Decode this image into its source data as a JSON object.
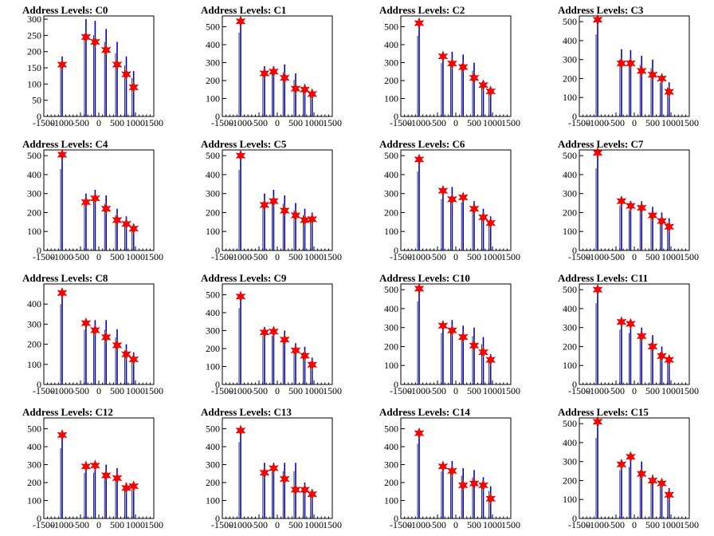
{
  "colors": {
    "spike": "#0000cc",
    "spike_dark": "#000000",
    "marker": "#ff0000",
    "marker_edge": "#cc0000",
    "axis": "#000000"
  },
  "x_ticks": [
    "-1500",
    "-1000",
    "-500",
    "0",
    "500",
    "1000",
    "1500"
  ],
  "chart_data": [
    {
      "type": "bar",
      "title": "Address Levels: C0",
      "xlim": [
        -1500,
        1500
      ],
      "ylim": [
        0,
        310
      ],
      "yticks": [
        0,
        50,
        100,
        150,
        200,
        250,
        300
      ],
      "bars": [
        [
          -1000,
          185
        ],
        [
          -350,
          300
        ],
        [
          -100,
          295
        ],
        [
          200,
          270
        ],
        [
          500,
          230
        ],
        [
          750,
          185
        ],
        [
          950,
          140
        ]
      ],
      "markers": [
        [
          -1000,
          160
        ],
        [
          -350,
          245
        ],
        [
          -100,
          230
        ],
        [
          200,
          205
        ],
        [
          500,
          160
        ],
        [
          750,
          130
        ],
        [
          950,
          90
        ]
      ]
    },
    {
      "type": "bar",
      "title": "Address Levels: C1",
      "xlim": [
        -1500,
        1500
      ],
      "ylim": [
        0,
        560
      ],
      "yticks": [
        0,
        100,
        200,
        300,
        400,
        500
      ],
      "bars": [
        [
          -1000,
          550
        ],
        [
          -350,
          280
        ],
        [
          -100,
          280
        ],
        [
          200,
          290
        ],
        [
          500,
          240
        ],
        [
          750,
          180
        ],
        [
          950,
          150
        ]
      ],
      "markers": [
        [
          -1000,
          530
        ],
        [
          -350,
          240
        ],
        [
          -100,
          250
        ],
        [
          200,
          215
        ],
        [
          500,
          155
        ],
        [
          750,
          150
        ],
        [
          950,
          125
        ]
      ]
    },
    {
      "type": "bar",
      "title": "Address Levels: C2",
      "xlim": [
        -1500,
        1500
      ],
      "ylim": [
        0,
        560
      ],
      "yticks": [
        0,
        100,
        200,
        300,
        400,
        500
      ],
      "bars": [
        [
          -1000,
          530
        ],
        [
          -350,
          350
        ],
        [
          -100,
          360
        ],
        [
          200,
          345
        ],
        [
          500,
          300
        ],
        [
          750,
          200
        ],
        [
          950,
          160
        ]
      ],
      "markers": [
        [
          -1000,
          520
        ],
        [
          -350,
          335
        ],
        [
          -100,
          295
        ],
        [
          200,
          275
        ],
        [
          500,
          215
        ],
        [
          750,
          175
        ],
        [
          950,
          140
        ]
      ]
    },
    {
      "type": "bar",
      "title": "Address Levels: C3",
      "xlim": [
        -1500,
        1500
      ],
      "ylim": [
        0,
        530
      ],
      "yticks": [
        0,
        100,
        200,
        300,
        400,
        500
      ],
      "bars": [
        [
          -1000,
          510
        ],
        [
          -350,
          355
        ],
        [
          -100,
          350
        ],
        [
          200,
          320
        ],
        [
          500,
          300
        ],
        [
          750,
          210
        ],
        [
          950,
          180
        ]
      ],
      "markers": [
        [
          -1000,
          510
        ],
        [
          -350,
          280
        ],
        [
          -100,
          280
        ],
        [
          200,
          240
        ],
        [
          500,
          220
        ],
        [
          750,
          200
        ],
        [
          950,
          130
        ]
      ]
    },
    {
      "type": "bar",
      "title": "Address Levels: C4",
      "xlim": [
        -1500,
        1500
      ],
      "ylim": [
        0,
        530
      ],
      "yticks": [
        0,
        100,
        200,
        300,
        400,
        500
      ],
      "bars": [
        [
          -1000,
          505
        ],
        [
          -350,
          300
        ],
        [
          -100,
          320
        ],
        [
          200,
          290
        ],
        [
          500,
          220
        ],
        [
          750,
          180
        ],
        [
          950,
          140
        ]
      ],
      "markers": [
        [
          -1000,
          505
        ],
        [
          -350,
          255
        ],
        [
          -100,
          275
        ],
        [
          200,
          220
        ],
        [
          500,
          160
        ],
        [
          750,
          140
        ],
        [
          950,
          115
        ]
      ]
    },
    {
      "type": "bar",
      "title": "Address Levels: C5",
      "xlim": [
        -1500,
        1500
      ],
      "ylim": [
        0,
        530
      ],
      "yticks": [
        0,
        100,
        200,
        300,
        400,
        500
      ],
      "bars": [
        [
          -1000,
          500
        ],
        [
          -350,
          300
        ],
        [
          -100,
          320
        ],
        [
          200,
          290
        ],
        [
          500,
          250
        ],
        [
          750,
          220
        ],
        [
          950,
          200
        ]
      ],
      "markers": [
        [
          -1000,
          500
        ],
        [
          -350,
          240
        ],
        [
          -100,
          260
        ],
        [
          200,
          210
        ],
        [
          500,
          185
        ],
        [
          750,
          160
        ],
        [
          950,
          165
        ]
      ]
    },
    {
      "type": "bar",
      "title": "Address Levels: C6",
      "xlim": [
        -1500,
        1500
      ],
      "ylim": [
        0,
        530
      ],
      "yticks": [
        0,
        100,
        200,
        300,
        400,
        500
      ],
      "bars": [
        [
          -1000,
          490
        ],
        [
          -350,
          320
        ],
        [
          -100,
          335
        ],
        [
          200,
          300
        ],
        [
          500,
          260
        ],
        [
          750,
          220
        ],
        [
          950,
          180
        ]
      ],
      "markers": [
        [
          -1000,
          480
        ],
        [
          -350,
          315
        ],
        [
          -100,
          270
        ],
        [
          200,
          280
        ],
        [
          500,
          220
        ],
        [
          750,
          175
        ],
        [
          950,
          145
        ]
      ]
    },
    {
      "type": "bar",
      "title": "Address Levels: C7",
      "xlim": [
        -1500,
        1500
      ],
      "ylim": [
        0,
        530
      ],
      "yticks": [
        0,
        100,
        200,
        300,
        400,
        500
      ],
      "bars": [
        [
          -1000,
          510
        ],
        [
          -350,
          280
        ],
        [
          -100,
          250
        ],
        [
          200,
          260
        ],
        [
          500,
          230
        ],
        [
          750,
          200
        ],
        [
          950,
          170
        ]
      ],
      "markers": [
        [
          -1000,
          515
        ],
        [
          -350,
          260
        ],
        [
          -100,
          235
        ],
        [
          200,
          225
        ],
        [
          500,
          185
        ],
        [
          750,
          155
        ],
        [
          950,
          125
        ]
      ]
    },
    {
      "type": "bar",
      "title": "Address Levels: C8",
      "xlim": [
        -1500,
        1500
      ],
      "ylim": [
        0,
        500
      ],
      "yticks": [
        0,
        100,
        200,
        300,
        400
      ],
      "bars": [
        [
          -1000,
          470
        ],
        [
          -350,
          320
        ],
        [
          -100,
          320
        ],
        [
          200,
          320
        ],
        [
          500,
          275
        ],
        [
          750,
          200
        ],
        [
          950,
          160
        ]
      ],
      "markers": [
        [
          -1000,
          455
        ],
        [
          -350,
          305
        ],
        [
          -100,
          270
        ],
        [
          200,
          235
        ],
        [
          500,
          195
        ],
        [
          750,
          150
        ],
        [
          950,
          125
        ]
      ]
    },
    {
      "type": "bar",
      "title": "Address Levels: C9",
      "xlim": [
        -1500,
        1500
      ],
      "ylim": [
        0,
        560
      ],
      "yticks": [
        0,
        100,
        200,
        300,
        400,
        500
      ],
      "bars": [
        [
          -1000,
          500
        ],
        [
          -350,
          320
        ],
        [
          -100,
          320
        ],
        [
          200,
          300
        ],
        [
          500,
          230
        ],
        [
          750,
          210
        ],
        [
          950,
          150
        ]
      ],
      "markers": [
        [
          -1000,
          490
        ],
        [
          -350,
          290
        ],
        [
          -100,
          295
        ],
        [
          200,
          250
        ],
        [
          500,
          190
        ],
        [
          750,
          160
        ],
        [
          950,
          110
        ]
      ]
    },
    {
      "type": "bar",
      "title": "Address Levels: C10",
      "xlim": [
        -1500,
        1500
      ],
      "ylim": [
        0,
        530
      ],
      "yticks": [
        0,
        100,
        200,
        300,
        400,
        500
      ],
      "bars": [
        [
          -1000,
          515
        ],
        [
          -350,
          320
        ],
        [
          -100,
          340
        ],
        [
          200,
          310
        ],
        [
          500,
          300
        ],
        [
          750,
          250
        ],
        [
          950,
          160
        ]
      ],
      "markers": [
        [
          -1000,
          505
        ],
        [
          -350,
          310
        ],
        [
          -100,
          285
        ],
        [
          200,
          250
        ],
        [
          500,
          205
        ],
        [
          750,
          170
        ],
        [
          950,
          130
        ]
      ]
    },
    {
      "type": "bar",
      "title": "Address Levels: C11",
      "xlim": [
        -1500,
        1500
      ],
      "ylim": [
        0,
        530
      ],
      "yticks": [
        0,
        100,
        200,
        300,
        400,
        500
      ],
      "bars": [
        [
          -1000,
          505
        ],
        [
          -350,
          340
        ],
        [
          -100,
          320
        ],
        [
          200,
          300
        ],
        [
          500,
          260
        ],
        [
          750,
          200
        ],
        [
          950,
          150
        ]
      ],
      "markers": [
        [
          -1000,
          500
        ],
        [
          -350,
          330
        ],
        [
          -100,
          320
        ],
        [
          200,
          255
        ],
        [
          500,
          200
        ],
        [
          750,
          150
        ],
        [
          950,
          130
        ]
      ]
    },
    {
      "type": "bar",
      "title": "Address Levels: C12",
      "xlim": [
        -1500,
        1500
      ],
      "ylim": [
        0,
        560
      ],
      "yticks": [
        0,
        100,
        200,
        300,
        400,
        500
      ],
      "bars": [
        [
          -1000,
          460
        ],
        [
          -350,
          300
        ],
        [
          -100,
          300
        ],
        [
          200,
          300
        ],
        [
          500,
          280
        ],
        [
          750,
          200
        ],
        [
          950,
          190
        ]
      ],
      "markers": [
        [
          -1000,
          465
        ],
        [
          -350,
          290
        ],
        [
          -100,
          295
        ],
        [
          200,
          240
        ],
        [
          500,
          225
        ],
        [
          750,
          170
        ],
        [
          950,
          180
        ]
      ]
    },
    {
      "type": "bar",
      "title": "Address Levels: C13",
      "xlim": [
        -1500,
        1500
      ],
      "ylim": [
        0,
        560
      ],
      "yticks": [
        0,
        100,
        200,
        300,
        400,
        500
      ],
      "bars": [
        [
          -1000,
          500
        ],
        [
          -350,
          310
        ],
        [
          -100,
          310
        ],
        [
          200,
          310
        ],
        [
          500,
          310
        ],
        [
          750,
          200
        ],
        [
          950,
          160
        ]
      ],
      "markers": [
        [
          -1000,
          490
        ],
        [
          -350,
          255
        ],
        [
          -100,
          280
        ],
        [
          200,
          220
        ],
        [
          500,
          160
        ],
        [
          750,
          160
        ],
        [
          950,
          135
        ]
      ]
    },
    {
      "type": "bar",
      "title": "Address Levels: C14",
      "xlim": [
        -1500,
        1500
      ],
      "ylim": [
        0,
        560
      ],
      "yticks": [
        0,
        100,
        200,
        300,
        400,
        500
      ],
      "bars": [
        [
          -1000,
          490
        ],
        [
          -350,
          310
        ],
        [
          -100,
          320
        ],
        [
          200,
          280
        ],
        [
          500,
          270
        ],
        [
          750,
          230
        ],
        [
          950,
          180
        ]
      ],
      "markers": [
        [
          -1000,
          475
        ],
        [
          -350,
          290
        ],
        [
          -100,
          265
        ],
        [
          200,
          185
        ],
        [
          500,
          195
        ],
        [
          750,
          185
        ],
        [
          950,
          110
        ]
      ]
    },
    {
      "type": "bar",
      "title": "Address Levels: C15",
      "xlim": [
        -1500,
        1500
      ],
      "ylim": [
        0,
        530
      ],
      "yticks": [
        0,
        100,
        200,
        300,
        400,
        500
      ],
      "bars": [
        [
          -1000,
          500
        ],
        [
          -350,
          300
        ],
        [
          -100,
          320
        ],
        [
          200,
          300
        ],
        [
          500,
          230
        ],
        [
          750,
          200
        ],
        [
          950,
          160
        ]
      ],
      "markers": [
        [
          -1000,
          510
        ],
        [
          -350,
          285
        ],
        [
          -100,
          325
        ],
        [
          200,
          235
        ],
        [
          500,
          200
        ],
        [
          750,
          185
        ],
        [
          950,
          125
        ]
      ]
    }
  ]
}
